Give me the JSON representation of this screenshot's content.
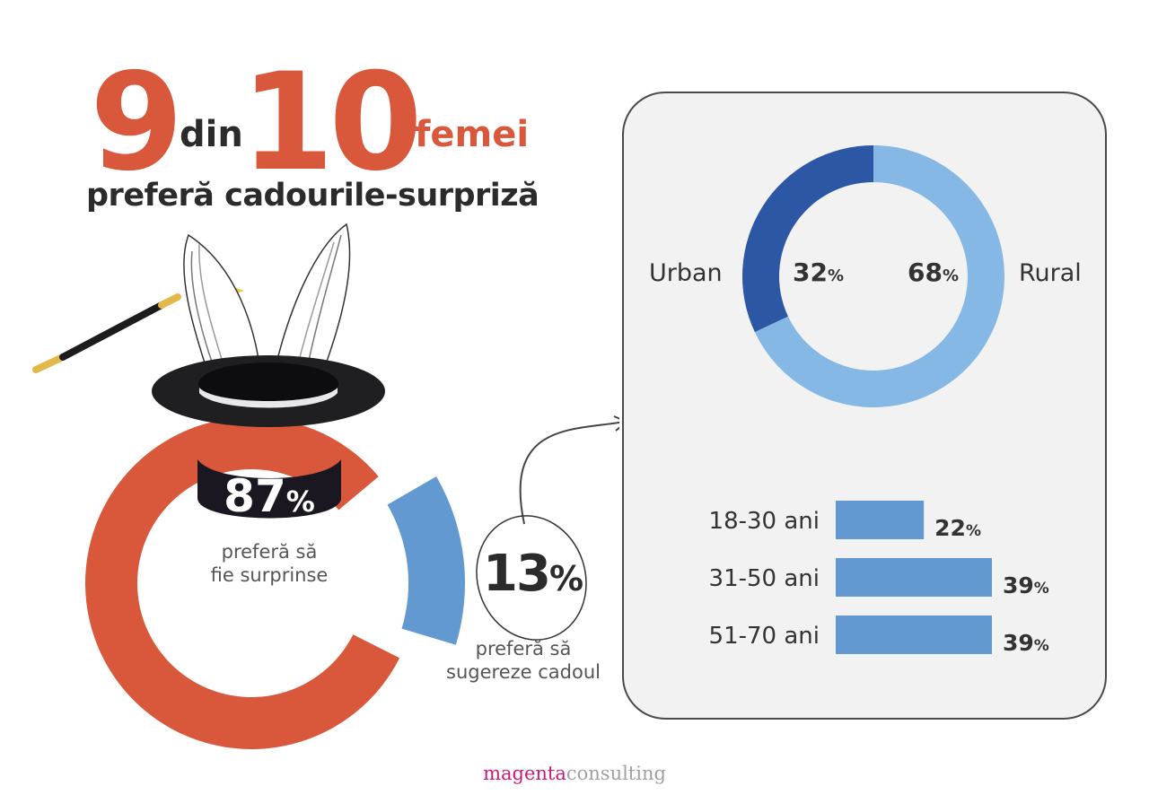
{
  "headline": {
    "num1": "9",
    "word1": "din",
    "num2": "10",
    "word2": "femei",
    "subtitle": "preferă cadourile-surpriză"
  },
  "main_donut": {
    "share_big": {
      "value": "87",
      "unit": "%",
      "label_line1": "preferă să",
      "label_line2": "fie surprinse"
    },
    "share_small": {
      "value": "13",
      "unit": "%",
      "label_line1": "preferă să",
      "label_line2": "sugereze cadoul"
    }
  },
  "chart_data": [
    {
      "type": "pie",
      "categories": [
        "preferă să fie surprinse",
        "preferă să sugereze cadoul"
      ],
      "values": [
        87,
        13
      ],
      "colors": [
        "#d9573a",
        "#6399d1"
      ]
    },
    {
      "type": "pie",
      "categories": [
        "Urban",
        "Rural"
      ],
      "values": [
        32,
        68
      ],
      "colors": [
        "#2b57a4",
        "#86b8e6"
      ],
      "labels": [
        "32",
        "68"
      ]
    },
    {
      "type": "bar",
      "orientation": "horizontal",
      "categories": [
        "18-30 ani",
        "31-50 ani",
        "51-70 ani"
      ],
      "values": [
        22,
        39,
        39
      ],
      "xlim": [
        0,
        39
      ],
      "color": "#6399d1"
    }
  ],
  "pct_unit": "%",
  "footer": {
    "brand_a": "magenta",
    "brand_b": "consulting"
  },
  "colors": {
    "accent": "#d9573a",
    "blue": "#6399d1",
    "dark_blue": "#2b57a4",
    "light_blue": "#86b8e6",
    "brand": "#c8197a"
  }
}
